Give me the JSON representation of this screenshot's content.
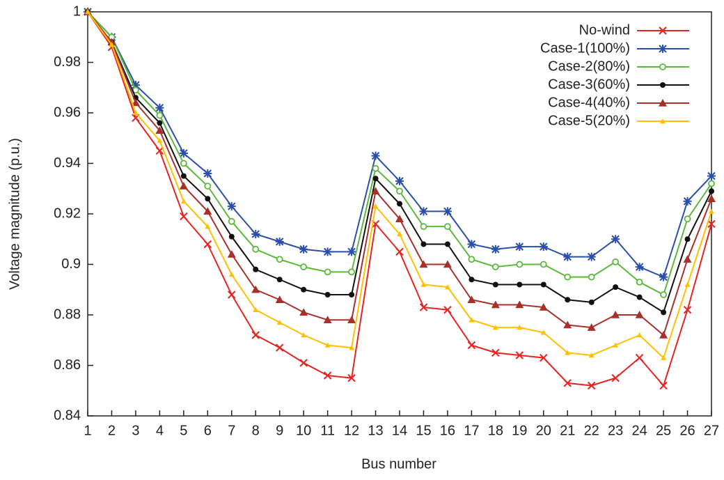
{
  "chart_data": {
    "type": "line",
    "x_label": "Bus number",
    "y_label": "Voltage magnitude (p.u.)",
    "x": [
      1,
      2,
      3,
      4,
      5,
      6,
      7,
      8,
      9,
      10,
      11,
      12,
      13,
      14,
      15,
      16,
      17,
      18,
      19,
      20,
      21,
      22,
      23,
      24,
      25,
      26,
      27
    ],
    "xlim": [
      1,
      27
    ],
    "xticks": [
      1,
      2,
      3,
      4,
      5,
      6,
      7,
      8,
      9,
      10,
      11,
      12,
      13,
      14,
      15,
      16,
      17,
      18,
      19,
      20,
      21,
      22,
      23,
      24,
      25,
      26,
      27
    ],
    "ylim": [
      0.84,
      1
    ],
    "yticks": [
      0.84,
      0.86,
      0.88,
      0.9,
      0.92,
      0.94,
      0.96,
      0.98,
      1
    ],
    "legend": "upper-right",
    "series": [
      {
        "name": "No-wind",
        "color": "#e8231f",
        "marker": "x",
        "values": [
          1,
          0.986,
          0.958,
          0.945,
          0.919,
          0.908,
          0.888,
          0.872,
          0.867,
          0.861,
          0.856,
          0.855,
          0.916,
          0.905,
          0.883,
          0.882,
          0.868,
          0.865,
          0.864,
          0.863,
          0.853,
          0.852,
          0.855,
          0.863,
          0.852,
          0.882,
          0.916
        ]
      },
      {
        "name": "Case-1(100%)",
        "color": "#2b4fa8",
        "marker": "star",
        "values": [
          1,
          0.99,
          0.971,
          0.962,
          0.944,
          0.936,
          0.923,
          0.912,
          0.909,
          0.906,
          0.905,
          0.905,
          0.943,
          0.933,
          0.921,
          0.921,
          0.908,
          0.906,
          0.907,
          0.907,
          0.903,
          0.903,
          0.91,
          0.899,
          0.895,
          0.925,
          0.935
        ]
      },
      {
        "name": "Case-2(80%)",
        "color": "#5cb83a",
        "marker": "open-circle",
        "values": [
          1,
          0.99,
          0.969,
          0.959,
          0.94,
          0.931,
          0.917,
          0.906,
          0.902,
          0.899,
          0.897,
          0.897,
          0.938,
          0.929,
          0.915,
          0.915,
          0.902,
          0.899,
          0.9,
          0.9,
          0.895,
          0.895,
          0.901,
          0.893,
          0.888,
          0.918,
          0.932
        ]
      },
      {
        "name": "Case-3(60%)",
        "color": "#111111",
        "marker": "circle",
        "values": [
          1,
          0.988,
          0.966,
          0.956,
          0.935,
          0.926,
          0.911,
          0.898,
          0.894,
          0.89,
          0.888,
          0.888,
          0.934,
          0.924,
          0.908,
          0.908,
          0.894,
          0.892,
          0.892,
          0.892,
          0.886,
          0.885,
          0.891,
          0.887,
          0.881,
          0.91,
          0.929
        ]
      },
      {
        "name": "Case-4(40%)",
        "color": "#a8302a",
        "marker": "triangle",
        "values": [
          1,
          0.988,
          0.964,
          0.953,
          0.931,
          0.921,
          0.904,
          0.89,
          0.886,
          0.881,
          0.878,
          0.878,
          0.929,
          0.918,
          0.9,
          0.9,
          0.886,
          0.884,
          0.884,
          0.883,
          0.876,
          0.875,
          0.88,
          0.88,
          0.872,
          0.902,
          0.926
        ]
      },
      {
        "name": "Case-5(20%)",
        "color": "#ffc000",
        "marker": "small-triangle",
        "values": [
          1,
          0.987,
          0.96,
          0.949,
          0.925,
          0.915,
          0.896,
          0.882,
          0.877,
          0.872,
          0.868,
          0.867,
          0.923,
          0.912,
          0.892,
          0.891,
          0.878,
          0.875,
          0.875,
          0.873,
          0.865,
          0.864,
          0.868,
          0.872,
          0.863,
          0.892,
          0.921
        ]
      }
    ]
  }
}
